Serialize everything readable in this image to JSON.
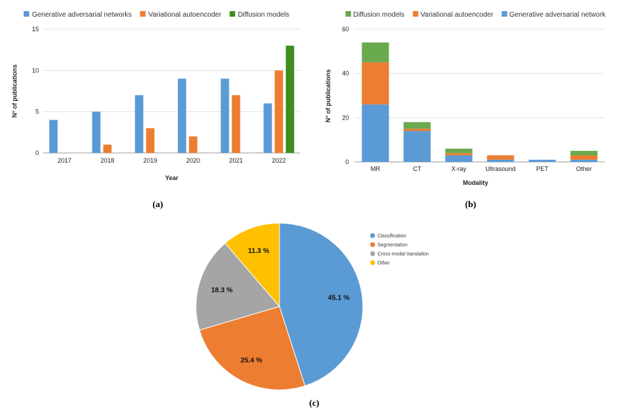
{
  "colors": {
    "blue": "#5b9bd5",
    "orange": "#ed7d31",
    "green_dark": "#3e8e1f",
    "green": "#6aaa4f",
    "grey": "#a5a5a5",
    "yellow": "#ffc000",
    "grid": "#e3e3e3"
  },
  "chart_data": [
    {
      "type": "bar",
      "panel_label": "(a)",
      "title": "",
      "xlabel": "Year",
      "ylabel": "N° of publications",
      "ylim": [
        0,
        15
      ],
      "yticks": [
        "0",
        "5",
        "10",
        "15"
      ],
      "categories": [
        "2017",
        "2018",
        "2019",
        "2020",
        "2021",
        "2022"
      ],
      "series": [
        {
          "name": "Generative adversarial networks",
          "color": "#5b9bd5",
          "values": [
            4,
            5,
            7,
            9,
            9,
            6
          ]
        },
        {
          "name": "Variational autoencoder",
          "color": "#ed7d31",
          "values": [
            0,
            1,
            3,
            2,
            7,
            10
          ]
        },
        {
          "name": "Diffusion models",
          "color": "#3e8e1f",
          "values": [
            0,
            0,
            0,
            0,
            0,
            13
          ]
        }
      ],
      "legend": "top"
    },
    {
      "type": "bar",
      "stacked": true,
      "panel_label": "(b)",
      "title": "",
      "xlabel": "Modality",
      "ylabel": "N° of publications",
      "ylim": [
        0,
        60
      ],
      "yticks": [
        "0",
        "20",
        "40",
        "60"
      ],
      "categories": [
        "MR",
        "CT",
        "X-ray",
        "Ultrasound",
        "PET",
        "Other"
      ],
      "series": [
        {
          "name": "Generative adversarial network",
          "color": "#5b9bd5",
          "values": [
            26,
            14,
            3,
            1,
            1,
            1
          ]
        },
        {
          "name": "Variational autoencoder",
          "color": "#ed7d31",
          "values": [
            19,
            1,
            1,
            2,
            0,
            2
          ]
        },
        {
          "name": "Diffusion models",
          "color": "#6aaa4f",
          "values": [
            9,
            3,
            2,
            0,
            0,
            2
          ]
        }
      ],
      "legend_order": [
        "Diffusion models",
        "Variational autoencoder",
        "Generative adversarial network"
      ],
      "legend": "top"
    },
    {
      "type": "pie",
      "panel_label": "(c)",
      "title": "",
      "slices": [
        {
          "name": "Classification",
          "value": 45.1,
          "label": "45.1 %",
          "color": "#5b9bd5"
        },
        {
          "name": "Segmentation",
          "value": 25.4,
          "label": "25.4 %",
          "color": "#ed7d31"
        },
        {
          "name": "Cross-modal translation",
          "value": 18.3,
          "label": "18.3 %",
          "color": "#a5a5a5"
        },
        {
          "name": "Other",
          "value": 11.3,
          "label": "11.3 %",
          "color": "#ffc000"
        }
      ],
      "legend": "right"
    }
  ]
}
